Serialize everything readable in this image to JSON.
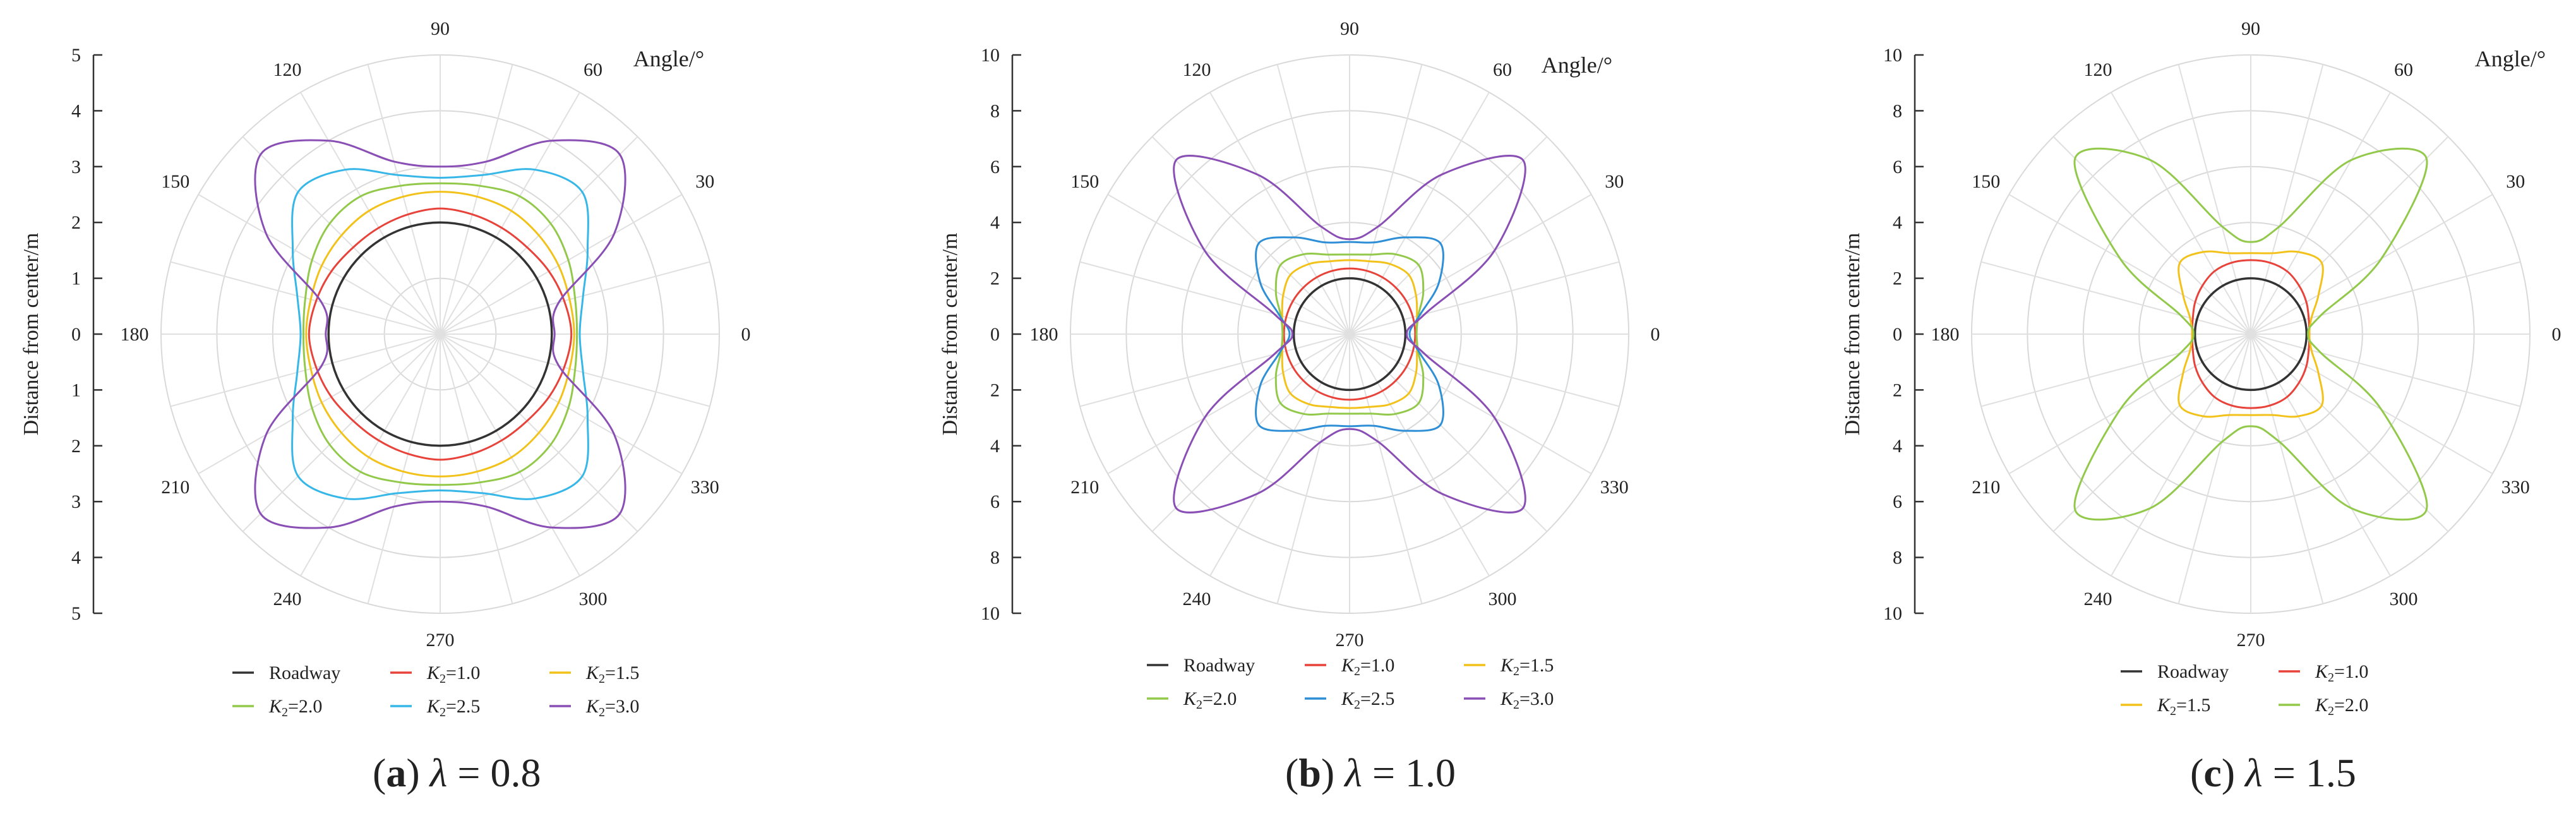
{
  "figure": {
    "panels": [
      {
        "caption": {
          "letter": "a",
          "open": "(",
          "close": ") ",
          "lambda": "λ",
          "rest": " = 0.8"
        },
        "yaxis_title": "Distance from center/m",
        "angle_title": "Angle/°"
      },
      {
        "caption": {
          "letter": "b",
          "open": "(",
          "close": ") ",
          "lambda": "λ",
          "rest": " = 1.0"
        },
        "yaxis_title": "Distance from center/m",
        "angle_title": "Angle/°"
      },
      {
        "caption": {
          "letter": "c",
          "open": "(",
          "close": ") ",
          "lambda": "λ",
          "rest": " = 1.5"
        },
        "yaxis_title": "Distance from center/m",
        "angle_title": "Angle/°"
      }
    ]
  },
  "chart_data": [
    {
      "type": "polar-line",
      "title": "(a) λ = 0.8",
      "ylabel": "Distance from center/m",
      "angle_label": "Angle/°",
      "radial_range": [
        0,
        5
      ],
      "radial_ticks": [
        5,
        4,
        3,
        2,
        1,
        0,
        1,
        2,
        3,
        4,
        5
      ],
      "angle_ticks": [
        0,
        30,
        60,
        90,
        120,
        150,
        180,
        210,
        240,
        270,
        300,
        330
      ],
      "grid": true,
      "legend": "bottom",
      "series": [
        {
          "name": "Roadway",
          "color": "#333333",
          "angles_deg": [
            0,
            15,
            30,
            45,
            60,
            75,
            90,
            105,
            120,
            135,
            150,
            165,
            180,
            195,
            210,
            225,
            240,
            255,
            270,
            285,
            300,
            315,
            330,
            345
          ],
          "r": [
            2.0,
            2.0,
            2.0,
            2.0,
            2.0,
            2.0,
            2.0,
            2.0,
            2.0,
            2.0,
            2.0,
            2.0,
            2.0,
            2.0,
            2.0,
            2.0,
            2.0,
            2.0,
            2.0,
            2.0,
            2.0,
            2.0,
            2.0,
            2.0
          ]
        },
        {
          "name": "K2=1.0",
          "color": "#e8433a",
          "angles_deg": [
            0,
            15,
            30,
            45,
            60,
            75,
            90,
            105,
            120,
            135,
            150,
            165,
            180,
            195,
            210,
            225,
            240,
            255,
            270,
            285,
            300,
            315,
            330,
            345
          ],
          "r": [
            2.35,
            2.3,
            2.25,
            2.2,
            2.2,
            2.22,
            2.25,
            2.22,
            2.2,
            2.2,
            2.25,
            2.3,
            2.35,
            2.3,
            2.25,
            2.2,
            2.2,
            2.22,
            2.25,
            2.22,
            2.2,
            2.2,
            2.25,
            2.3
          ]
        },
        {
          "name": "K2=1.5",
          "color": "#f2c21b",
          "angles_deg": [
            0,
            15,
            30,
            45,
            60,
            75,
            90,
            105,
            120,
            135,
            150,
            165,
            180,
            195,
            210,
            225,
            240,
            255,
            270,
            285,
            300,
            315,
            330,
            345
          ],
          "r": [
            2.4,
            2.4,
            2.45,
            2.5,
            2.55,
            2.55,
            2.55,
            2.55,
            2.55,
            2.5,
            2.45,
            2.4,
            2.4,
            2.4,
            2.45,
            2.5,
            2.55,
            2.55,
            2.55,
            2.55,
            2.55,
            2.5,
            2.45,
            2.4
          ]
        },
        {
          "name": "K2=2.0",
          "color": "#92c94a",
          "angles_deg": [
            0,
            15,
            30,
            45,
            60,
            75,
            90,
            105,
            120,
            135,
            150,
            165,
            180,
            195,
            210,
            225,
            240,
            255,
            270,
            285,
            300,
            315,
            330,
            345
          ],
          "r": [
            2.45,
            2.5,
            2.65,
            2.8,
            2.85,
            2.75,
            2.7,
            2.75,
            2.85,
            2.8,
            2.65,
            2.5,
            2.45,
            2.5,
            2.65,
            2.8,
            2.85,
            2.75,
            2.7,
            2.75,
            2.85,
            2.8,
            2.65,
            2.5
          ]
        },
        {
          "name": "K2=2.5",
          "color": "#36b7e8",
          "angles_deg": [
            0,
            15,
            30,
            45,
            60,
            75,
            90,
            105,
            120,
            135,
            150,
            165,
            180,
            195,
            210,
            225,
            240,
            255,
            270,
            285,
            300,
            315,
            330,
            345
          ],
          "r": [
            2.5,
            2.65,
            3.05,
            3.6,
            3.4,
            2.95,
            2.8,
            2.95,
            3.4,
            3.6,
            3.05,
            2.65,
            2.5,
            2.65,
            3.05,
            3.6,
            3.4,
            2.95,
            2.8,
            2.95,
            3.4,
            3.6,
            3.05,
            2.65
          ]
        },
        {
          "name": "K2=3.0",
          "color": "#8a4fb5",
          "angles_deg": [
            0,
            15,
            30,
            45,
            60,
            75,
            90,
            105,
            120,
            135,
            150,
            165,
            180,
            195,
            210,
            225,
            240,
            255,
            270,
            285,
            300,
            315,
            330,
            345
          ],
          "r": [
            2.05,
            2.2,
            3.6,
            4.55,
            4.0,
            3.2,
            3.0,
            3.2,
            4.0,
            4.55,
            3.6,
            2.2,
            2.05,
            2.2,
            3.6,
            4.55,
            4.0,
            3.2,
            3.0,
            3.2,
            4.0,
            4.55,
            3.6,
            2.2
          ]
        }
      ]
    },
    {
      "type": "polar-line",
      "title": "(b) λ = 1.0",
      "ylabel": "Distance from center/m",
      "angle_label": "Angle/°",
      "radial_range": [
        0,
        10
      ],
      "radial_ticks": [
        10,
        8,
        6,
        4,
        2,
        0,
        2,
        4,
        6,
        8,
        10
      ],
      "angle_ticks": [
        0,
        30,
        60,
        90,
        120,
        150,
        180,
        210,
        240,
        270,
        300,
        330
      ],
      "grid": true,
      "legend": "bottom",
      "series": [
        {
          "name": "Roadway",
          "color": "#333333",
          "angles_deg": [
            0,
            15,
            30,
            45,
            60,
            75,
            90,
            105,
            120,
            135,
            150,
            165,
            180,
            195,
            210,
            225,
            240,
            255,
            270,
            285,
            300,
            315,
            330,
            345
          ],
          "r": [
            2.0,
            2.0,
            2.0,
            2.0,
            2.0,
            2.0,
            2.0,
            2.0,
            2.0,
            2.0,
            2.0,
            2.0,
            2.0,
            2.0,
            2.0,
            2.0,
            2.0,
            2.0,
            2.0,
            2.0,
            2.0,
            2.0,
            2.0,
            2.0
          ]
        },
        {
          "name": "K2=1.0",
          "color": "#e8433a",
          "angles_deg": [
            0,
            15,
            30,
            45,
            60,
            75,
            90,
            105,
            120,
            135,
            150,
            165,
            180,
            195,
            210,
            225,
            240,
            255,
            270,
            285,
            300,
            315,
            330,
            345
          ],
          "r": [
            2.35,
            2.35,
            2.35,
            2.35,
            2.35,
            2.35,
            2.35,
            2.35,
            2.35,
            2.35,
            2.35,
            2.35,
            2.35,
            2.35,
            2.35,
            2.35,
            2.35,
            2.35,
            2.35,
            2.35,
            2.35,
            2.35,
            2.35,
            2.35
          ]
        },
        {
          "name": "K2=1.5",
          "color": "#f2c21b",
          "angles_deg": [
            0,
            15,
            30,
            45,
            60,
            75,
            90,
            105,
            120,
            135,
            150,
            165,
            180,
            195,
            210,
            225,
            240,
            255,
            270,
            285,
            300,
            315,
            330,
            345
          ],
          "r": [
            2.4,
            2.5,
            2.75,
            3.0,
            2.9,
            2.7,
            2.65,
            2.7,
            2.9,
            3.0,
            2.75,
            2.5,
            2.4,
            2.5,
            2.75,
            3.0,
            2.9,
            2.7,
            2.65,
            2.7,
            2.9,
            3.0,
            2.75,
            2.5
          ]
        },
        {
          "name": "K2=2.0",
          "color": "#92c94a",
          "angles_deg": [
            0,
            15,
            30,
            45,
            60,
            75,
            90,
            105,
            120,
            135,
            150,
            165,
            180,
            195,
            210,
            225,
            240,
            255,
            270,
            285,
            300,
            315,
            330,
            345
          ],
          "r": [
            2.4,
            2.55,
            3.05,
            3.5,
            3.3,
            2.95,
            2.85,
            2.95,
            3.3,
            3.5,
            3.05,
            2.55,
            2.4,
            2.55,
            3.05,
            3.5,
            3.3,
            2.95,
            2.85,
            2.95,
            3.3,
            3.5,
            3.05,
            2.55
          ]
        },
        {
          "name": "K2=2.5",
          "color": "#2f8fd6",
          "angles_deg": [
            0,
            15,
            30,
            45,
            60,
            75,
            90,
            105,
            120,
            135,
            150,
            165,
            180,
            195,
            210,
            225,
            240,
            255,
            270,
            285,
            300,
            315,
            330,
            345
          ],
          "r": [
            2.15,
            2.6,
            3.7,
            4.6,
            4.0,
            3.4,
            3.3,
            3.4,
            4.0,
            4.6,
            3.7,
            2.6,
            2.15,
            2.6,
            3.7,
            4.6,
            4.0,
            3.4,
            3.3,
            3.4,
            4.0,
            4.6,
            3.7,
            2.6
          ]
        },
        {
          "name": "K2=3.0",
          "color": "#8a4fb5",
          "angles_deg": [
            0,
            15,
            30,
            45,
            60,
            75,
            90,
            105,
            120,
            135,
            150,
            165,
            180,
            195,
            210,
            225,
            240,
            255,
            270,
            285,
            300,
            315,
            330,
            345
          ],
          "r": [
            2.05,
            2.8,
            6.0,
            8.8,
            6.6,
            4.0,
            3.4,
            4.0,
            6.6,
            8.8,
            6.0,
            2.8,
            2.05,
            2.8,
            6.0,
            8.8,
            6.6,
            4.0,
            3.4,
            4.0,
            6.6,
            8.8,
            6.0,
            2.8
          ]
        }
      ]
    },
    {
      "type": "polar-line",
      "title": "(c) λ = 1.5",
      "ylabel": "Distance from center/m",
      "angle_label": "Angle/°",
      "radial_range": [
        0,
        10
      ],
      "radial_ticks": [
        10,
        8,
        6,
        4,
        2,
        0,
        2,
        4,
        6,
        8,
        10
      ],
      "angle_ticks": [
        0,
        30,
        60,
        90,
        120,
        150,
        180,
        210,
        240,
        270,
        300,
        330
      ],
      "grid": true,
      "legend": "bottom",
      "series": [
        {
          "name": "Roadway",
          "color": "#333333",
          "angles_deg": [
            0,
            15,
            30,
            45,
            60,
            75,
            90,
            105,
            120,
            135,
            150,
            165,
            180,
            195,
            210,
            225,
            240,
            255,
            270,
            285,
            300,
            315,
            330,
            345
          ],
          "r": [
            2.0,
            2.0,
            2.0,
            2.0,
            2.0,
            2.0,
            2.0,
            2.0,
            2.0,
            2.0,
            2.0,
            2.0,
            2.0,
            2.0,
            2.0,
            2.0,
            2.0,
            2.0,
            2.0,
            2.0,
            2.0,
            2.0,
            2.0,
            2.0
          ]
        },
        {
          "name": "K2=1.0",
          "color": "#e8433a",
          "angles_deg": [
            0,
            15,
            30,
            45,
            60,
            75,
            90,
            105,
            120,
            135,
            150,
            165,
            180,
            195,
            210,
            225,
            240,
            255,
            270,
            285,
            300,
            315,
            330,
            345
          ],
          "r": [
            2.1,
            2.15,
            2.3,
            2.45,
            2.6,
            2.65,
            2.65,
            2.65,
            2.6,
            2.45,
            2.3,
            2.15,
            2.1,
            2.15,
            2.3,
            2.45,
            2.6,
            2.65,
            2.65,
            2.65,
            2.6,
            2.45,
            2.3,
            2.15
          ]
        },
        {
          "name": "K2=1.5",
          "color": "#f2c21b",
          "angles_deg": [
            0,
            15,
            30,
            45,
            60,
            75,
            90,
            105,
            120,
            135,
            150,
            165,
            180,
            195,
            210,
            225,
            240,
            255,
            270,
            285,
            300,
            315,
            330,
            345
          ],
          "r": [
            2.1,
            2.25,
            2.8,
            3.6,
            3.4,
            3.0,
            2.9,
            3.0,
            3.4,
            3.6,
            2.8,
            2.25,
            2.1,
            2.25,
            2.8,
            3.6,
            3.4,
            3.0,
            2.9,
            3.0,
            3.4,
            3.6,
            2.8,
            2.25
          ]
        },
        {
          "name": "K2=2.0",
          "color": "#92c94a",
          "angles_deg": [
            0,
            15,
            30,
            45,
            60,
            75,
            90,
            105,
            120,
            135,
            150,
            165,
            180,
            195,
            210,
            225,
            240,
            255,
            270,
            285,
            300,
            315,
            330,
            345
          ],
          "r": [
            2.05,
            2.6,
            5.4,
            8.9,
            7.2,
            4.0,
            3.3,
            4.0,
            7.2,
            8.9,
            5.4,
            2.6,
            2.05,
            2.6,
            5.4,
            8.9,
            7.2,
            4.0,
            3.3,
            4.0,
            7.2,
            8.9,
            5.4,
            2.6
          ]
        }
      ]
    }
  ]
}
